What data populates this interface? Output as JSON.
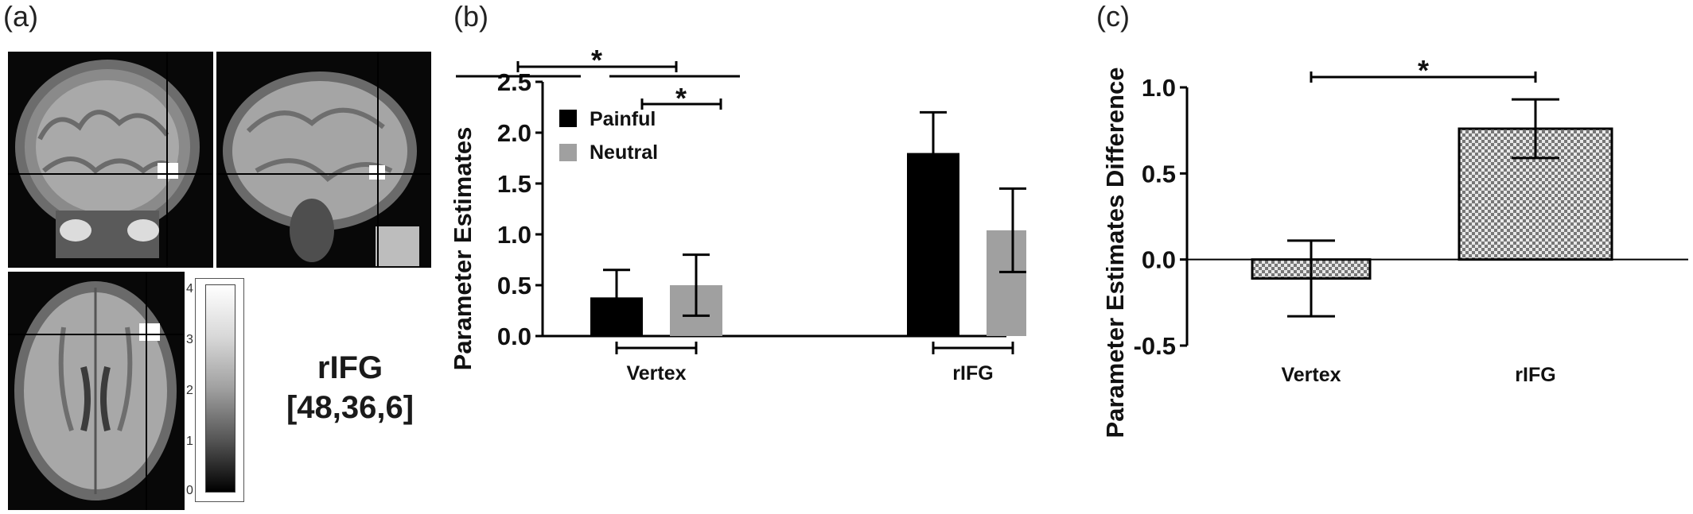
{
  "panels": {
    "a": "(a)",
    "b": "(b)",
    "c": "(c)"
  },
  "roi": {
    "name": "rIFG",
    "coords": "[48,36,6]"
  },
  "colorbar": {
    "ticks": [
      "4",
      "3",
      "2",
      "1",
      "0"
    ]
  },
  "chart_data": [
    {
      "type": "bar",
      "panel": "(b)",
      "categories": [
        "Vertex",
        "rIFG"
      ],
      "series": [
        {
          "name": "Painful",
          "values": [
            0.38,
            1.8
          ],
          "errors": [
            0.27,
            0.4
          ],
          "color": "#000000"
        },
        {
          "name": "Neutral",
          "values": [
            0.5,
            1.04
          ],
          "errors": [
            0.3,
            0.41
          ],
          "color": "#a0a0a0"
        }
      ],
      "ylabel": "Parameter Estimates",
      "ylim": [
        0,
        2.5
      ],
      "yticks": [
        "0.0",
        "0.5",
        "1.0",
        "1.5",
        "2.0",
        "2.5"
      ],
      "legend": "top-left",
      "significance": [
        "*",
        "*"
      ]
    },
    {
      "type": "bar",
      "panel": "(c)",
      "categories": [
        "Vertex",
        "rIFG"
      ],
      "values": [
        -0.11,
        0.76
      ],
      "errors": [
        0.22,
        0.17
      ],
      "pattern": "checkered",
      "ylabel": "Parameter Estimates Difference",
      "ylim": [
        -0.5,
        1.0
      ],
      "yticks": [
        "-0.5",
        "0.0",
        "0.5",
        "1.0"
      ],
      "significance": [
        "*"
      ]
    }
  ]
}
